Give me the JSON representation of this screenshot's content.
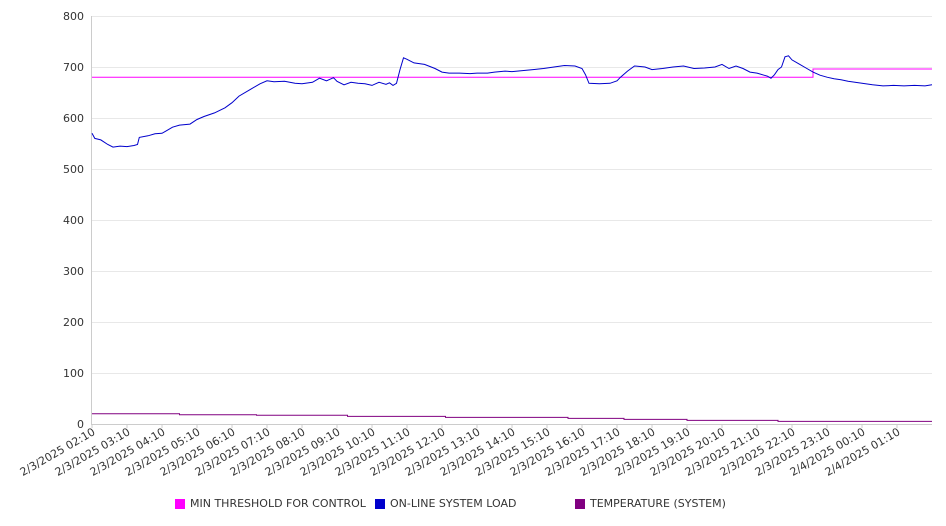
{
  "chart_data": {
    "type": "line",
    "title": "",
    "xlabel": "",
    "ylabel": "",
    "ylim": [
      0,
      800
    ],
    "yticks": [
      0,
      100,
      200,
      300,
      400,
      500,
      600,
      700,
      800
    ],
    "grid": true,
    "legend_position": "bottom",
    "xtick_labels": [
      "2/3/2025 02:10",
      "2/3/2025 03:10",
      "2/3/2025 04:10",
      "2/3/2025 05:10",
      "2/3/2025 06:10",
      "2/3/2025 07:10",
      "2/3/2025 08:10",
      "2/3/2025 09:10",
      "2/3/2025 10:10",
      "2/3/2025 11:10",
      "2/3/2025 12:10",
      "2/3/2025 13:10",
      "2/3/2025 14:10",
      "2/3/2025 15:10",
      "2/3/2025 16:10",
      "2/3/2025 17:10",
      "2/3/2025 18:10",
      "2/3/2025 19:10",
      "2/3/2025 20:10",
      "2/3/2025 21:10",
      "2/3/2025 22:10",
      "2/3/2025 23:10",
      "2/4/2025 00:10",
      "2/4/2025 01:10"
    ],
    "x_range_hours": [
      0,
      24
    ],
    "series": [
      {
        "name": "MIN THRESHOLD FOR CONTROL",
        "color": "#ff00ff",
        "points": [
          [
            0,
            680
          ],
          [
            20.6,
            680
          ],
          [
            20.6,
            696
          ],
          [
            24,
            696
          ]
        ]
      },
      {
        "name": "ON-LINE SYSTEM LOAD",
        "color": "#0000cc",
        "points": [
          [
            0,
            570
          ],
          [
            0.08,
            560
          ],
          [
            0.25,
            557
          ],
          [
            0.45,
            548
          ],
          [
            0.6,
            543
          ],
          [
            0.8,
            545
          ],
          [
            1.0,
            544
          ],
          [
            1.2,
            546
          ],
          [
            1.3,
            548
          ],
          [
            1.35,
            562
          ],
          [
            1.6,
            565
          ],
          [
            1.8,
            569
          ],
          [
            2.0,
            570
          ],
          [
            2.1,
            574
          ],
          [
            2.3,
            582
          ],
          [
            2.5,
            586
          ],
          [
            2.8,
            588
          ],
          [
            3.0,
            597
          ],
          [
            3.2,
            603
          ],
          [
            3.5,
            610
          ],
          [
            3.8,
            620
          ],
          [
            4.0,
            630
          ],
          [
            4.2,
            643
          ],
          [
            4.5,
            655
          ],
          [
            4.8,
            667
          ],
          [
            5.0,
            673
          ],
          [
            5.2,
            671
          ],
          [
            5.5,
            672
          ],
          [
            5.8,
            668
          ],
          [
            6.0,
            667
          ],
          [
            6.3,
            670
          ],
          [
            6.5,
            678
          ],
          [
            6.7,
            673
          ],
          [
            6.9,
            679
          ],
          [
            7.0,
            672
          ],
          [
            7.2,
            665
          ],
          [
            7.4,
            670
          ],
          [
            7.6,
            668
          ],
          [
            7.8,
            667
          ],
          [
            8.0,
            664
          ],
          [
            8.2,
            670
          ],
          [
            8.4,
            666
          ],
          [
            8.5,
            669
          ],
          [
            8.6,
            664
          ],
          [
            8.7,
            668
          ],
          [
            8.8,
            695
          ],
          [
            8.9,
            718
          ],
          [
            9.0,
            715
          ],
          [
            9.2,
            708
          ],
          [
            9.5,
            705
          ],
          [
            9.8,
            697
          ],
          [
            10.0,
            690
          ],
          [
            10.2,
            688
          ],
          [
            10.5,
            688
          ],
          [
            10.8,
            687
          ],
          [
            11.0,
            688
          ],
          [
            11.3,
            688
          ],
          [
            11.5,
            690
          ],
          [
            11.8,
            692
          ],
          [
            12.0,
            691
          ],
          [
            12.3,
            693
          ],
          [
            12.6,
            695
          ],
          [
            12.9,
            697
          ],
          [
            13.2,
            700
          ],
          [
            13.5,
            703
          ],
          [
            13.8,
            702
          ],
          [
            14.0,
            697
          ],
          [
            14.1,
            685
          ],
          [
            14.2,
            668
          ],
          [
            14.5,
            667
          ],
          [
            14.8,
            668
          ],
          [
            15.0,
            673
          ],
          [
            15.1,
            680
          ],
          [
            15.3,
            692
          ],
          [
            15.5,
            702
          ],
          [
            15.8,
            700
          ],
          [
            16.0,
            695
          ],
          [
            16.3,
            697
          ],
          [
            16.6,
            700
          ],
          [
            16.9,
            702
          ],
          [
            17.2,
            697
          ],
          [
            17.5,
            698
          ],
          [
            17.8,
            700
          ],
          [
            18.0,
            705
          ],
          [
            18.2,
            697
          ],
          [
            18.4,
            702
          ],
          [
            18.6,
            697
          ],
          [
            18.8,
            690
          ],
          [
            19.0,
            688
          ],
          [
            19.2,
            684
          ],
          [
            19.3,
            682
          ],
          [
            19.4,
            678
          ],
          [
            19.5,
            685
          ],
          [
            19.6,
            695
          ],
          [
            19.7,
            700
          ],
          [
            19.8,
            720
          ],
          [
            19.9,
            722
          ],
          [
            20.0,
            714
          ],
          [
            20.2,
            706
          ],
          [
            20.4,
            698
          ],
          [
            20.6,
            690
          ],
          [
            20.8,
            684
          ],
          [
            21.0,
            680
          ],
          [
            21.2,
            677
          ],
          [
            21.4,
            675
          ],
          [
            21.6,
            672
          ],
          [
            21.8,
            670
          ],
          [
            22.0,
            668
          ],
          [
            22.3,
            665
          ],
          [
            22.6,
            663
          ],
          [
            22.9,
            664
          ],
          [
            23.2,
            663
          ],
          [
            23.5,
            664
          ],
          [
            23.8,
            663
          ],
          [
            24.0,
            665
          ]
        ]
      },
      {
        "name": "TEMPERATURE (SYSTEM)",
        "color": "#800080",
        "points": [
          [
            0,
            20
          ],
          [
            2.5,
            20
          ],
          [
            2.5,
            18
          ],
          [
            4.7,
            18
          ],
          [
            4.7,
            17
          ],
          [
            7.3,
            17
          ],
          [
            7.3,
            15
          ],
          [
            10.1,
            15
          ],
          [
            10.1,
            13
          ],
          [
            13.6,
            13
          ],
          [
            13.6,
            11
          ],
          [
            15.2,
            11
          ],
          [
            15.2,
            9
          ],
          [
            17.0,
            9
          ],
          [
            17.0,
            7
          ],
          [
            19.6,
            7
          ],
          [
            19.6,
            5
          ],
          [
            24,
            5
          ]
        ]
      }
    ]
  }
}
